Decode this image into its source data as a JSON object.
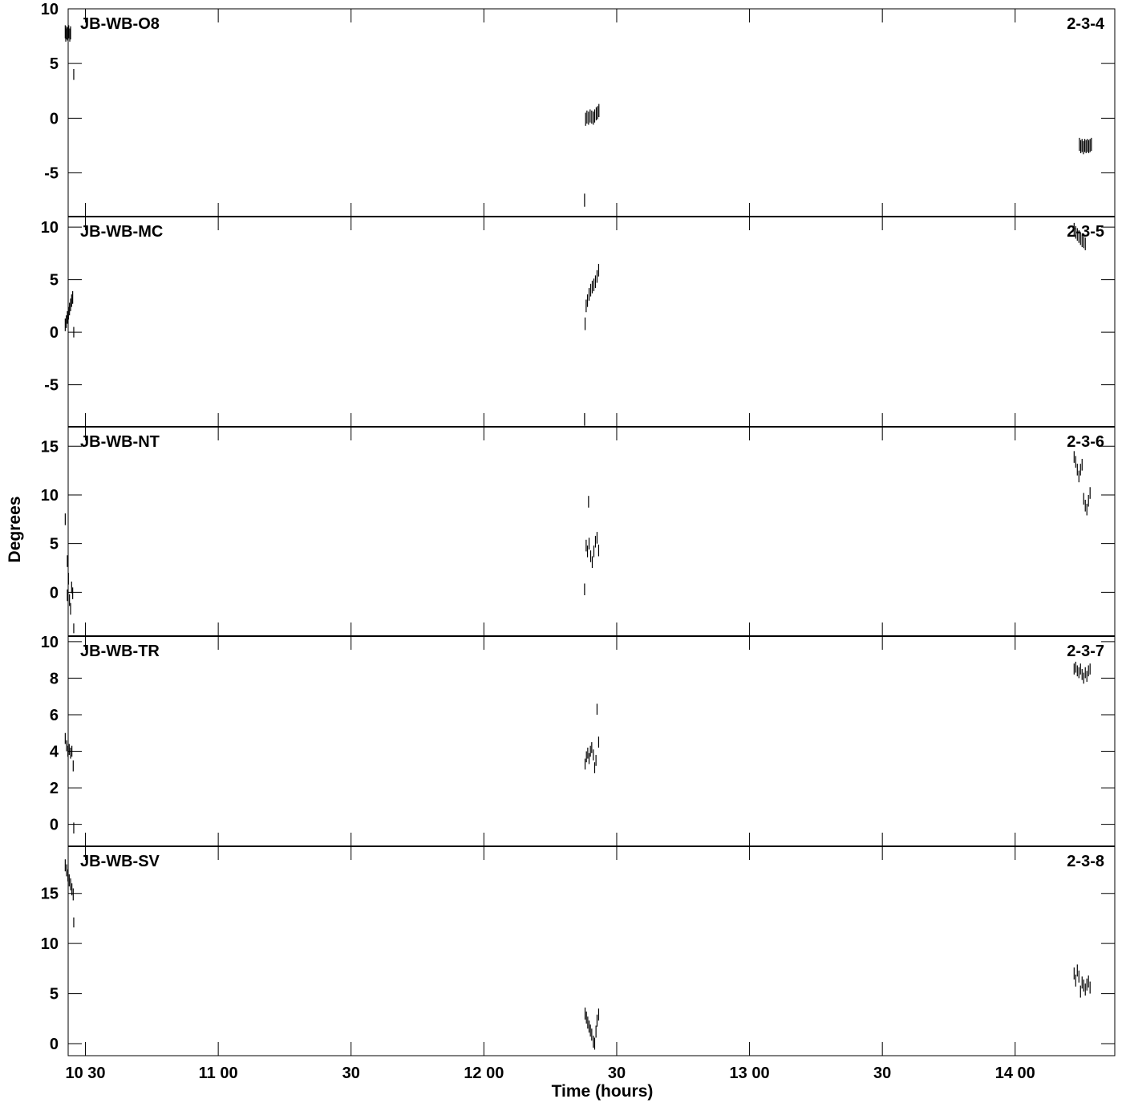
{
  "chart_data": {
    "type": "scatter",
    "xlabel": "Time (hours)",
    "ylabel": "Degrees",
    "x_units": "decimal hours",
    "xlim": [
      10.435,
      14.375
    ],
    "x_ticks": [
      {
        "value": 10.5,
        "label": "10 30"
      },
      {
        "value": 11.0,
        "label": "11 00"
      },
      {
        "value": 11.5,
        "label": "30"
      },
      {
        "value": 12.0,
        "label": "12 00"
      },
      {
        "value": 12.5,
        "label": "30"
      },
      {
        "value": 13.0,
        "label": "13 00"
      },
      {
        "value": 13.5,
        "label": "30"
      },
      {
        "value": 14.0,
        "label": "14 00"
      }
    ],
    "panels": [
      {
        "baseline": "JB-WB-O8",
        "id": "2-3-4",
        "ylim": [
          -9,
          10
        ],
        "yticks": [
          -5,
          0,
          5,
          10
        ],
        "points": [
          [
            10.424,
            7.9,
            0.6
          ],
          [
            10.426,
            7.6,
            0.6
          ],
          [
            10.429,
            7.8,
            0.6
          ],
          [
            10.433,
            7.7,
            0.6
          ],
          [
            10.437,
            7.9,
            0.6
          ],
          [
            10.441,
            7.6,
            0.6
          ],
          [
            10.444,
            7.8,
            0.6
          ],
          [
            10.456,
            4.0,
            0.5
          ],
          [
            12.379,
            -7.5,
            0.6
          ],
          [
            12.383,
            -0.1,
            0.6
          ],
          [
            12.388,
            0.1,
            0.6
          ],
          [
            12.394,
            0.0,
            0.6
          ],
          [
            12.4,
            0.2,
            0.6
          ],
          [
            12.406,
            0.1,
            0.6
          ],
          [
            12.412,
            0.0,
            0.6
          ],
          [
            12.417,
            0.2,
            0.6
          ],
          [
            12.423,
            0.4,
            0.6
          ],
          [
            12.428,
            0.5,
            0.6
          ],
          [
            12.433,
            0.7,
            0.6
          ],
          [
            14.242,
            -2.4,
            0.6
          ],
          [
            14.247,
            -2.6,
            0.6
          ],
          [
            14.252,
            -2.5,
            0.6
          ],
          [
            14.257,
            -2.7,
            0.6
          ],
          [
            14.262,
            -2.5,
            0.6
          ],
          [
            14.267,
            -2.6,
            0.6
          ],
          [
            14.272,
            -2.5,
            0.6
          ],
          [
            14.277,
            -2.6,
            0.6
          ],
          [
            14.282,
            -2.5,
            0.6
          ],
          [
            14.287,
            -2.4,
            0.6
          ]
        ]
      },
      {
        "baseline": "JB-WB-MC",
        "id": "2-3-5",
        "ylim": [
          -9,
          11
        ],
        "yticks": [
          -5,
          0,
          5,
          10
        ],
        "points": [
          [
            10.424,
            0.7,
            0.6
          ],
          [
            10.428,
            1.0,
            0.6
          ],
          [
            10.432,
            1.4,
            0.6
          ],
          [
            10.436,
            1.8,
            0.6
          ],
          [
            10.44,
            2.2,
            0.6
          ],
          [
            10.444,
            2.6,
            0.6
          ],
          [
            10.448,
            3.0,
            0.6
          ],
          [
            10.452,
            3.3,
            0.6
          ],
          [
            10.456,
            0.0,
            0.5
          ],
          [
            12.379,
            -8.3,
            0.6
          ],
          [
            12.381,
            0.8,
            0.6
          ],
          [
            12.385,
            2.5,
            0.6
          ],
          [
            12.39,
            3.0,
            0.6
          ],
          [
            12.396,
            3.6,
            0.6
          ],
          [
            12.402,
            4.0,
            0.6
          ],
          [
            12.408,
            4.3,
            0.6
          ],
          [
            12.414,
            4.5,
            0.6
          ],
          [
            12.42,
            4.8,
            0.6
          ],
          [
            12.426,
            5.3,
            0.6
          ],
          [
            12.432,
            5.9,
            0.6
          ],
          [
            14.222,
            9.8,
            0.6
          ],
          [
            14.228,
            9.5,
            0.6
          ],
          [
            14.234,
            9.3,
            0.6
          ],
          [
            14.24,
            9.1,
            0.6
          ],
          [
            14.246,
            8.9,
            0.6
          ],
          [
            14.252,
            8.7,
            0.6
          ],
          [
            14.258,
            8.6,
            0.6
          ],
          [
            14.264,
            8.4,
            0.6
          ]
        ]
      },
      {
        "baseline": "JB-WB-NT",
        "id": "2-3-6",
        "ylim": [
          -4.5,
          17
        ],
        "yticks": [
          0,
          5,
          10,
          15
        ],
        "points": [
          [
            10.424,
            7.5,
            0.6
          ],
          [
            10.432,
            3.2,
            0.6
          ],
          [
            10.436,
            1.4,
            0.6
          ],
          [
            10.432,
            -0.3,
            0.6
          ],
          [
            10.44,
            -0.8,
            0.6
          ],
          [
            10.444,
            -1.7,
            0.6
          ],
          [
            10.448,
            0.5,
            0.6
          ],
          [
            10.452,
            -0.1,
            0.6
          ],
          [
            10.456,
            -3.7,
            0.5
          ],
          [
            12.379,
            0.3,
            0.6
          ],
          [
            12.394,
            9.3,
            0.6
          ],
          [
            12.385,
            4.8,
            0.6
          ],
          [
            12.39,
            4.2,
            0.6
          ],
          [
            12.396,
            5.0,
            0.6
          ],
          [
            12.402,
            3.7,
            0.6
          ],
          [
            12.408,
            3.1,
            0.6
          ],
          [
            12.414,
            4.2,
            0.6
          ],
          [
            12.42,
            5.2,
            0.6
          ],
          [
            12.426,
            5.6,
            0.6
          ],
          [
            12.432,
            4.3,
            0.6
          ],
          [
            14.222,
            13.9,
            0.6
          ],
          [
            14.228,
            13.4,
            0.6
          ],
          [
            14.234,
            12.6,
            0.6
          ],
          [
            14.24,
            11.9,
            0.6
          ],
          [
            14.246,
            12.6,
            0.6
          ],
          [
            14.252,
            13.1,
            0.6
          ],
          [
            14.258,
            9.6,
            0.6
          ],
          [
            14.264,
            8.9,
            0.6
          ],
          [
            14.27,
            8.5,
            0.6
          ],
          [
            14.276,
            9.4,
            0.6
          ],
          [
            14.282,
            10.2,
            0.6
          ]
        ]
      },
      {
        "baseline": "JB-WB-TR",
        "id": "2-3-7",
        "ylim": [
          -1.2,
          10.3
        ],
        "yticks": [
          0,
          2,
          4,
          6,
          8,
          10
        ],
        "points": [
          [
            10.424,
            4.7,
            0.3
          ],
          [
            10.429,
            4.3,
            0.3
          ],
          [
            10.434,
            4.0,
            0.3
          ],
          [
            10.439,
            4.1,
            0.3
          ],
          [
            10.444,
            3.9,
            0.3
          ],
          [
            10.449,
            4.0,
            0.3
          ],
          [
            10.454,
            3.2,
            0.3
          ],
          [
            10.456,
            -0.2,
            0.3
          ],
          [
            12.381,
            3.3,
            0.3
          ],
          [
            12.386,
            3.7,
            0.3
          ],
          [
            12.391,
            3.9,
            0.3
          ],
          [
            12.396,
            3.6,
            0.3
          ],
          [
            12.401,
            4.0,
            0.3
          ],
          [
            12.406,
            4.2,
            0.3
          ],
          [
            12.412,
            3.8,
            0.3
          ],
          [
            12.417,
            3.1,
            0.3
          ],
          [
            12.422,
            3.5,
            0.3
          ],
          [
            12.426,
            6.3,
            0.3
          ],
          [
            12.432,
            4.5,
            0.3
          ],
          [
            14.222,
            8.5,
            0.3
          ],
          [
            14.228,
            8.6,
            0.3
          ],
          [
            14.234,
            8.4,
            0.3
          ],
          [
            14.24,
            8.3,
            0.3
          ],
          [
            14.246,
            8.5,
            0.3
          ],
          [
            14.252,
            8.2,
            0.3
          ],
          [
            14.258,
            8.0,
            0.3
          ],
          [
            14.264,
            8.3,
            0.3
          ],
          [
            14.27,
            8.1,
            0.3
          ],
          [
            14.276,
            8.4,
            0.3
          ],
          [
            14.282,
            8.5,
            0.3
          ]
        ]
      },
      {
        "baseline": "JB-WB-SV",
        "id": "2-3-8",
        "ylim": [
          -1.2,
          19.7
        ],
        "yticks": [
          0,
          5,
          10,
          15
        ],
        "points": [
          [
            10.424,
            17.8,
            0.6
          ],
          [
            10.429,
            17.3,
            0.6
          ],
          [
            10.434,
            16.8,
            0.6
          ],
          [
            10.439,
            16.3,
            0.6
          ],
          [
            10.444,
            15.9,
            0.6
          ],
          [
            10.449,
            15.4,
            0.6
          ],
          [
            10.454,
            14.9,
            0.6
          ],
          [
            10.456,
            12.1,
            0.5
          ],
          [
            12.381,
            3.0,
            0.6
          ],
          [
            12.386,
            2.6,
            0.6
          ],
          [
            12.391,
            2.1,
            0.6
          ],
          [
            12.396,
            1.7,
            0.6
          ],
          [
            12.401,
            1.3,
            0.6
          ],
          [
            12.406,
            0.9,
            0.6
          ],
          [
            12.412,
            0.2,
            0.6
          ],
          [
            12.417,
            0.0,
            0.6
          ],
          [
            12.422,
            1.2,
            0.6
          ],
          [
            12.426,
            2.3,
            0.6
          ],
          [
            12.432,
            2.9,
            0.6
          ],
          [
            14.222,
            7.0,
            0.6
          ],
          [
            14.228,
            6.3,
            0.6
          ],
          [
            14.234,
            7.3,
            0.6
          ],
          [
            14.24,
            6.7,
            0.6
          ],
          [
            14.246,
            5.2,
            0.6
          ],
          [
            14.252,
            6.1,
            0.6
          ],
          [
            14.258,
            5.8,
            0.6
          ],
          [
            14.264,
            5.4,
            0.6
          ],
          [
            14.27,
            5.9,
            0.6
          ],
          [
            14.276,
            6.2,
            0.6
          ],
          [
            14.282,
            5.6,
            0.6
          ]
        ]
      }
    ]
  }
}
